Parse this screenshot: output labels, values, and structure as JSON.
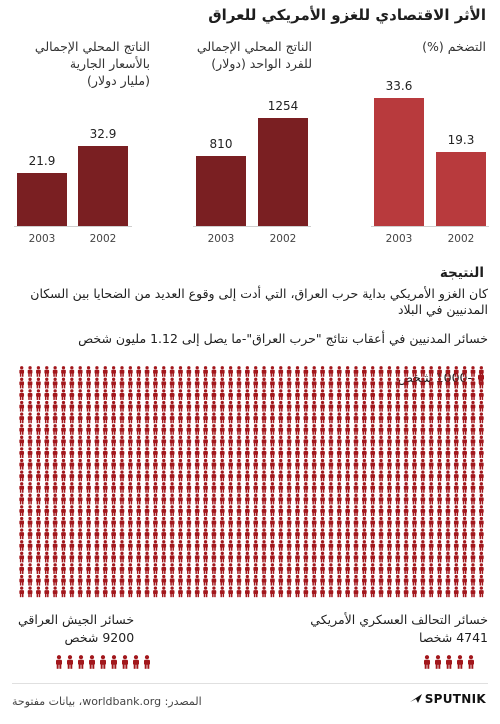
{
  "title": "الأثر الاقتصادي للغزو الأمريكي للعراق",
  "colors": {
    "dark_red": "#7a1f22",
    "red": "#b83a3d",
    "figure": "#a2171c"
  },
  "chart_data": [
    {
      "type": "bar",
      "title": "الناتج المحلي الإجمالي بالأسعار الجارية (مليار دولار)",
      "title_lines": [
        "الناتج المحلي الإجمالي",
        "بالأسعار الجارية",
        "(مليار دولار)"
      ],
      "categories": [
        "2003",
        "2002"
      ],
      "values": [
        21.9,
        32.9
      ],
      "value_labels": [
        "21.9",
        "32.9"
      ],
      "color": "#7a1f22"
    },
    {
      "type": "bar",
      "title": "الناتج المحلي الإجمالي للفرد الواحد (دولار)",
      "title_lines": [
        "الناتج المحلي الإجمالي",
        "للفرد الواحد (دولار)"
      ],
      "categories": [
        "2003",
        "2002"
      ],
      "values": [
        810,
        1254
      ],
      "value_labels": [
        "810",
        "1254"
      ],
      "color": "#7a1f22"
    },
    {
      "type": "bar",
      "title": "التضخم (%)",
      "title_lines": [
        "التضخم (%)"
      ],
      "categories": [
        "2003",
        "2002"
      ],
      "values": [
        33.6,
        19.3
      ],
      "value_labels": [
        "33.6",
        "19.3"
      ],
      "color": "#b83a3d"
    }
  ],
  "result": {
    "heading": "النتيجة",
    "paragraph_1": "كان الغزو الأمريكي بداية حرب العراق، التي أدت إلى وقوع العديد من الضحايا بين السكان المدنيين في البلاد",
    "paragraph_2": "خسائر المدنيين في أعقاب نتائج \"حرب العراق\"-ما يصل إلى 1.12 مليون شخص",
    "legend": "-1000 شخص",
    "civilian_figures": 1120,
    "per_figure": 1000
  },
  "losses": {
    "coalition_label": "خسائر التحالف العسكري الأمريكي",
    "coalition_value": "4741 شخصا",
    "coalition_figures": 5,
    "iraqi_label": "خسائر الجيش العراقي",
    "iraqi_value": "9200 شخص",
    "iraqi_figures": 9
  },
  "footer": {
    "source": "المصدر: worldbank.org، بيانات مفتوحة",
    "logo": "SPUTNIK"
  }
}
